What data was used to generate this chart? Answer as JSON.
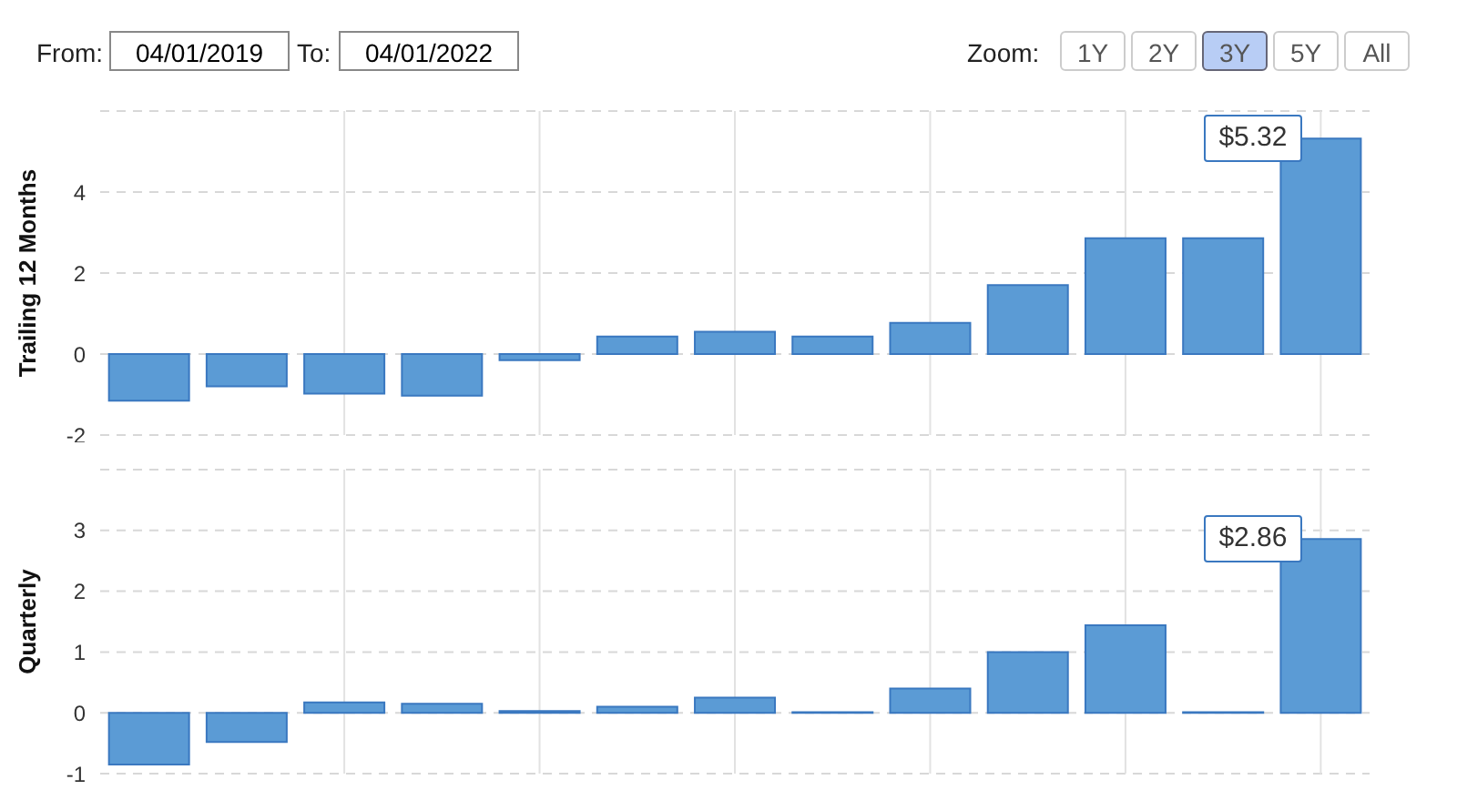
{
  "chart_data": [
    {
      "type": "bar",
      "ylabel": "Trailing 12 Months",
      "categories": [
        null,
        null,
        null,
        null,
        null,
        null,
        null,
        null,
        null,
        null,
        null,
        null,
        null
      ],
      "values": [
        -1.15,
        -0.8,
        -0.98,
        -1.03,
        -0.15,
        0.43,
        0.55,
        0.43,
        0.77,
        1.7,
        2.86,
        2.86,
        5.32
      ],
      "color": "#5b9bd5",
      "ylim": [
        -2,
        6
      ],
      "yticks": [
        -2,
        0,
        2,
        4,
        {
          "value": 6,
          "label": null
        }
      ],
      "grid": true,
      "tick_labels": "y",
      "annotations": [
        "$5.32",
        "From:",
        "04/01/2019",
        "To:",
        "04/01/2022",
        "Zoom:",
        "1Y",
        "2Y",
        "3Y",
        "5Y",
        "All"
      ]
    },
    {
      "type": "bar",
      "ylabel": "Quarterly",
      "categories": [
        null,
        null,
        null,
        null,
        null,
        null,
        null,
        null,
        null,
        null,
        null,
        null,
        null
      ],
      "values": [
        -0.85,
        -0.48,
        0.17,
        0.15,
        0.03,
        0.1,
        0.25,
        0.01,
        0.4,
        1.0,
        1.44,
        0.01,
        2.86
      ],
      "color": "#5b9bd5",
      "ylim": [
        -1,
        4
      ],
      "yticks": [
        -1,
        0,
        1,
        2,
        3,
        {
          "value": 4,
          "label": null
        }
      ],
      "grid": true,
      "tick_labels": "y",
      "annotations": [
        "$2.86"
      ]
    }
  ]
}
